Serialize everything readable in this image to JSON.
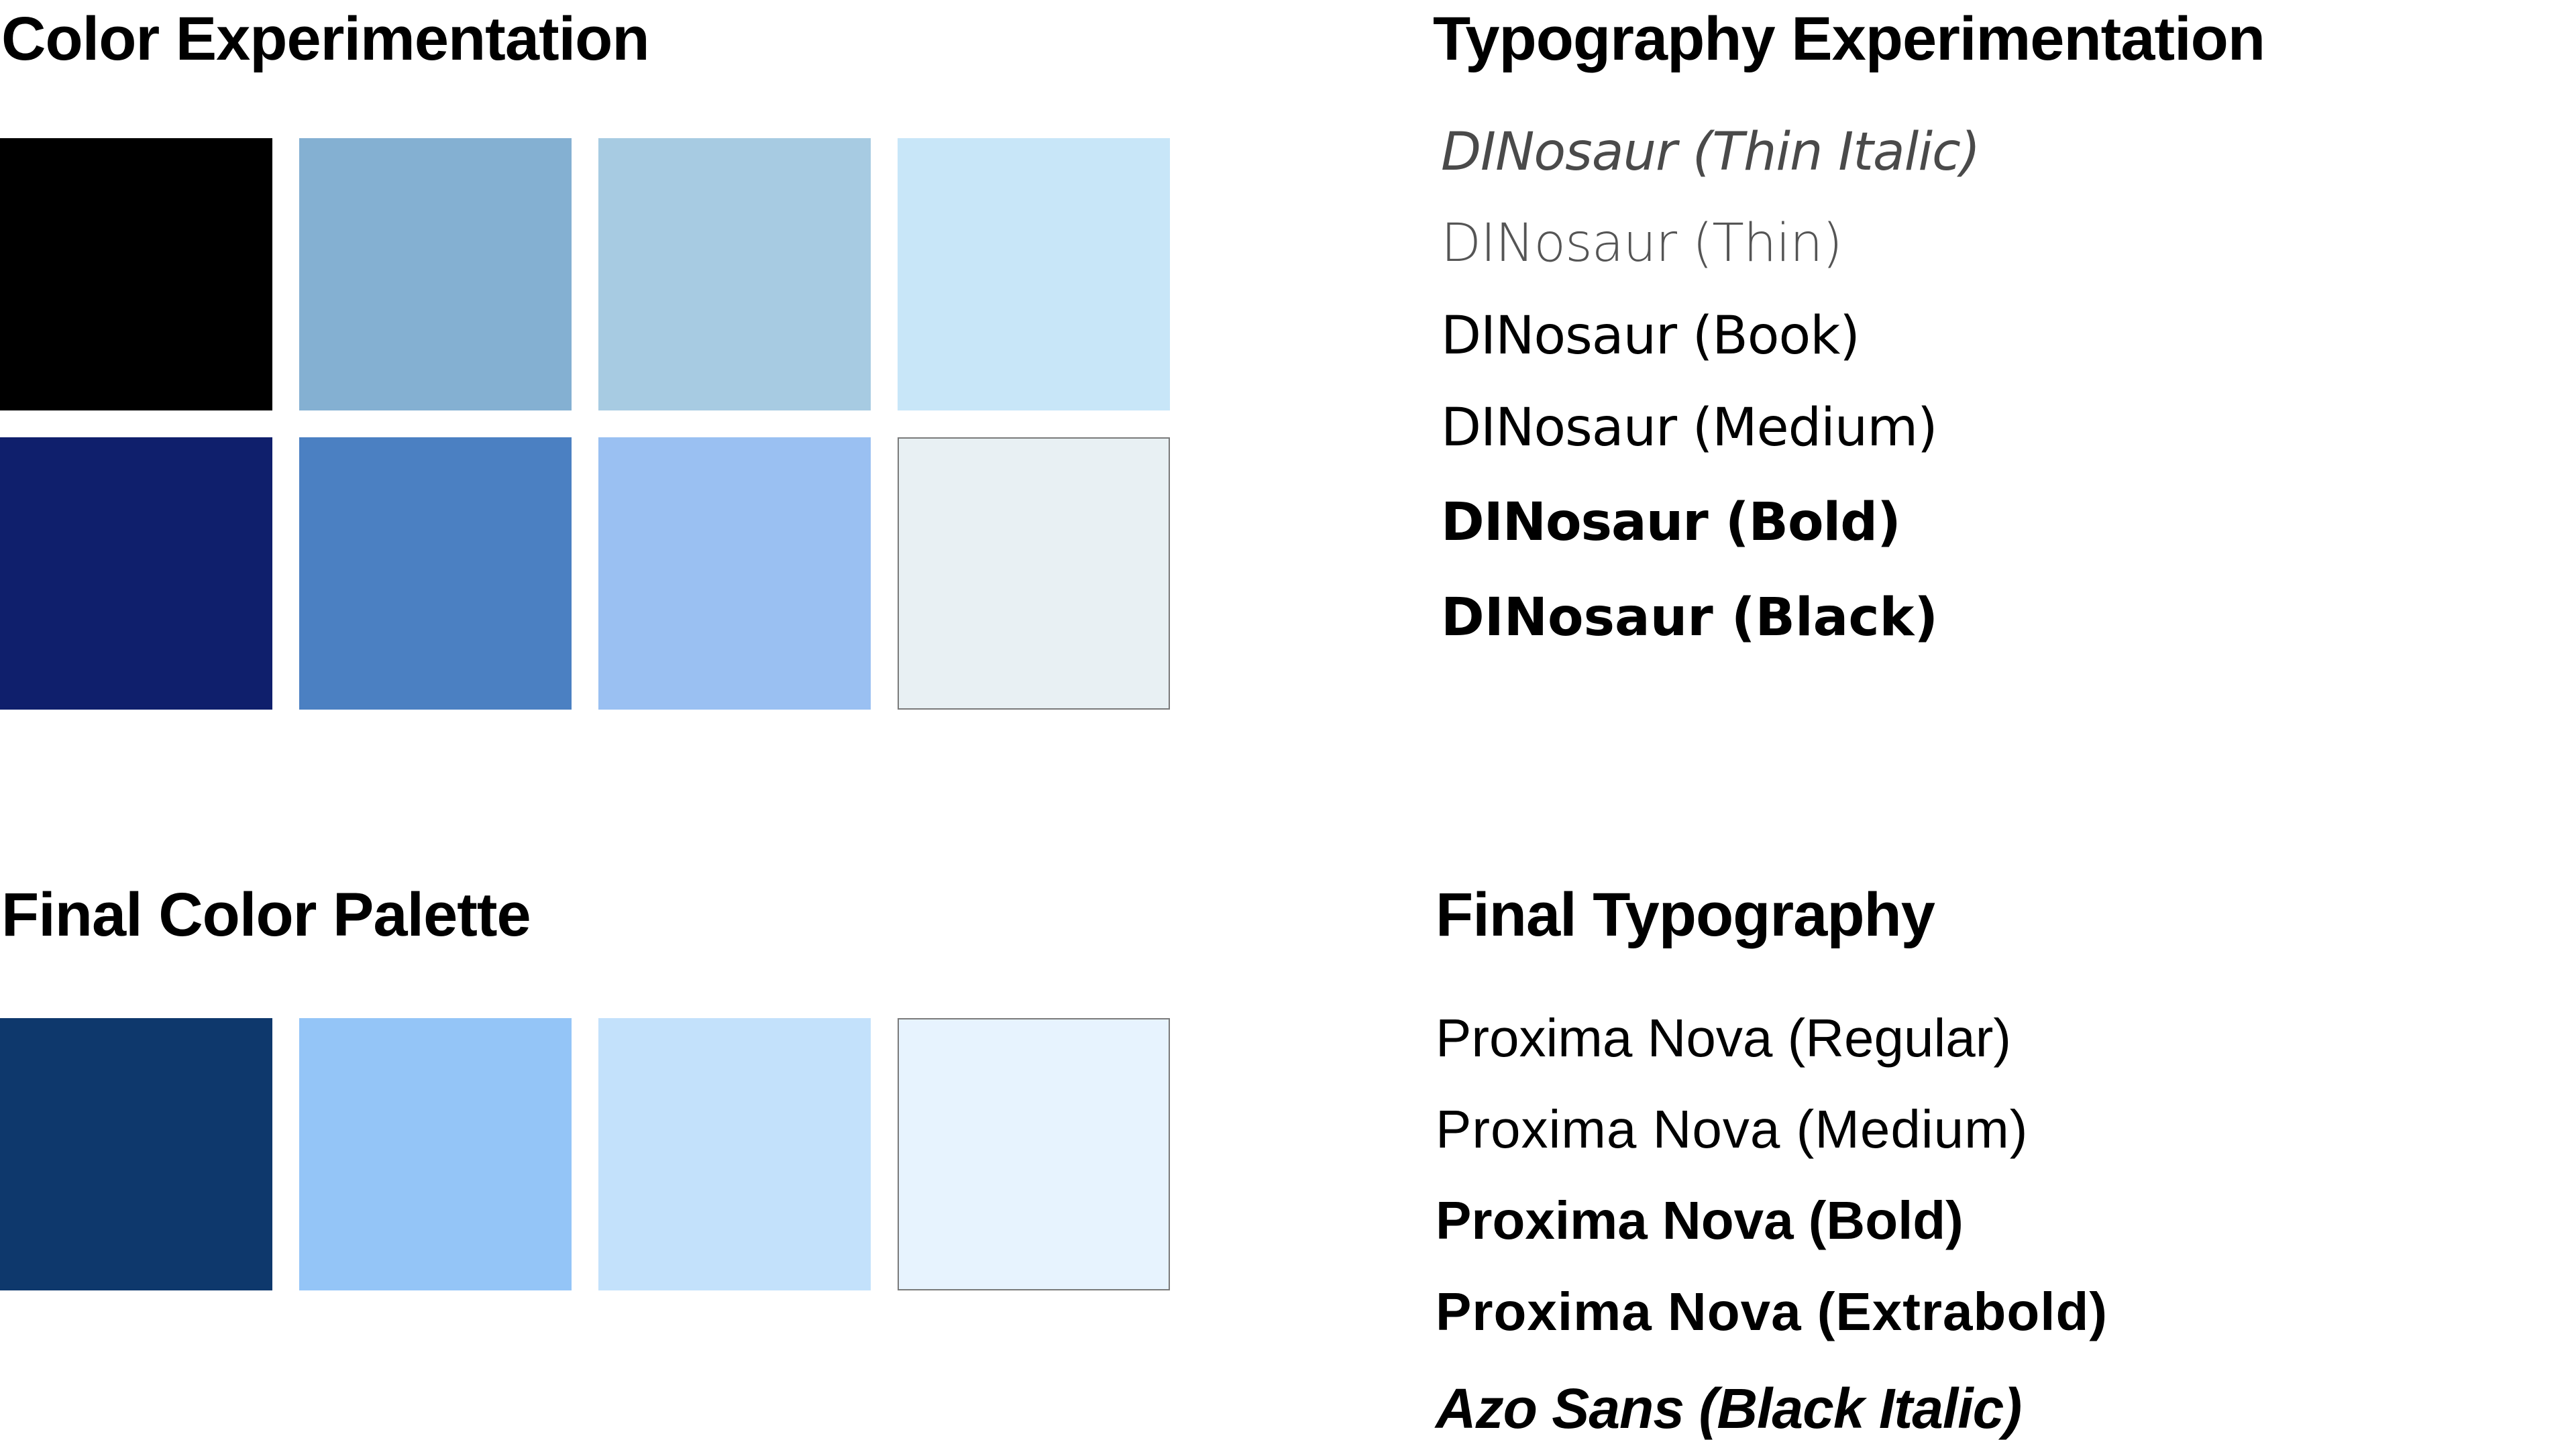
{
  "color_experimentation": {
    "title": "Color Experimentation",
    "swatches": [
      {
        "color": "#000000"
      },
      {
        "color": "#84b0d2"
      },
      {
        "color": "#a7cbe2"
      },
      {
        "color": "#c8e6f8"
      },
      {
        "color": "#0f1f6c"
      },
      {
        "color": "#4b80c2"
      },
      {
        "color": "#9ac0f2"
      },
      {
        "color": "#e8f0f3",
        "bordered": true
      }
    ]
  },
  "final_color_palette": {
    "title": "Final Color Palette",
    "swatches": [
      {
        "color": "#0e386c"
      },
      {
        "color": "#94c5f7"
      },
      {
        "color": "#c3e1fb"
      },
      {
        "color": "#e7f3fe",
        "bordered": true
      }
    ]
  },
  "typography_experimentation": {
    "title": "Typography Experimentation",
    "samples": [
      {
        "label": "DINosaur (Thin Italic)",
        "color": "#4a4a4a"
      },
      {
        "label": "DINosaur (Thin)",
        "color": "#555555"
      },
      {
        "label": "DINosaur (Book)",
        "color": "#000000"
      },
      {
        "label": "DINosaur (Medium)",
        "color": "#000000"
      },
      {
        "label": "DINosaur (Bold)",
        "color": "#000000"
      },
      {
        "label": "DINosaur (Black)",
        "color": "#000000"
      }
    ]
  },
  "final_typography": {
    "title": "Final Typography",
    "samples": [
      {
        "label": "Proxima Nova (Regular)"
      },
      {
        "label": "Proxima Nova (Medium)"
      },
      {
        "label": "Proxima Nova (Bold)"
      },
      {
        "label": "Proxima Nova (Extrabold)"
      },
      {
        "label": "Azo Sans (Black Italic)"
      }
    ]
  }
}
